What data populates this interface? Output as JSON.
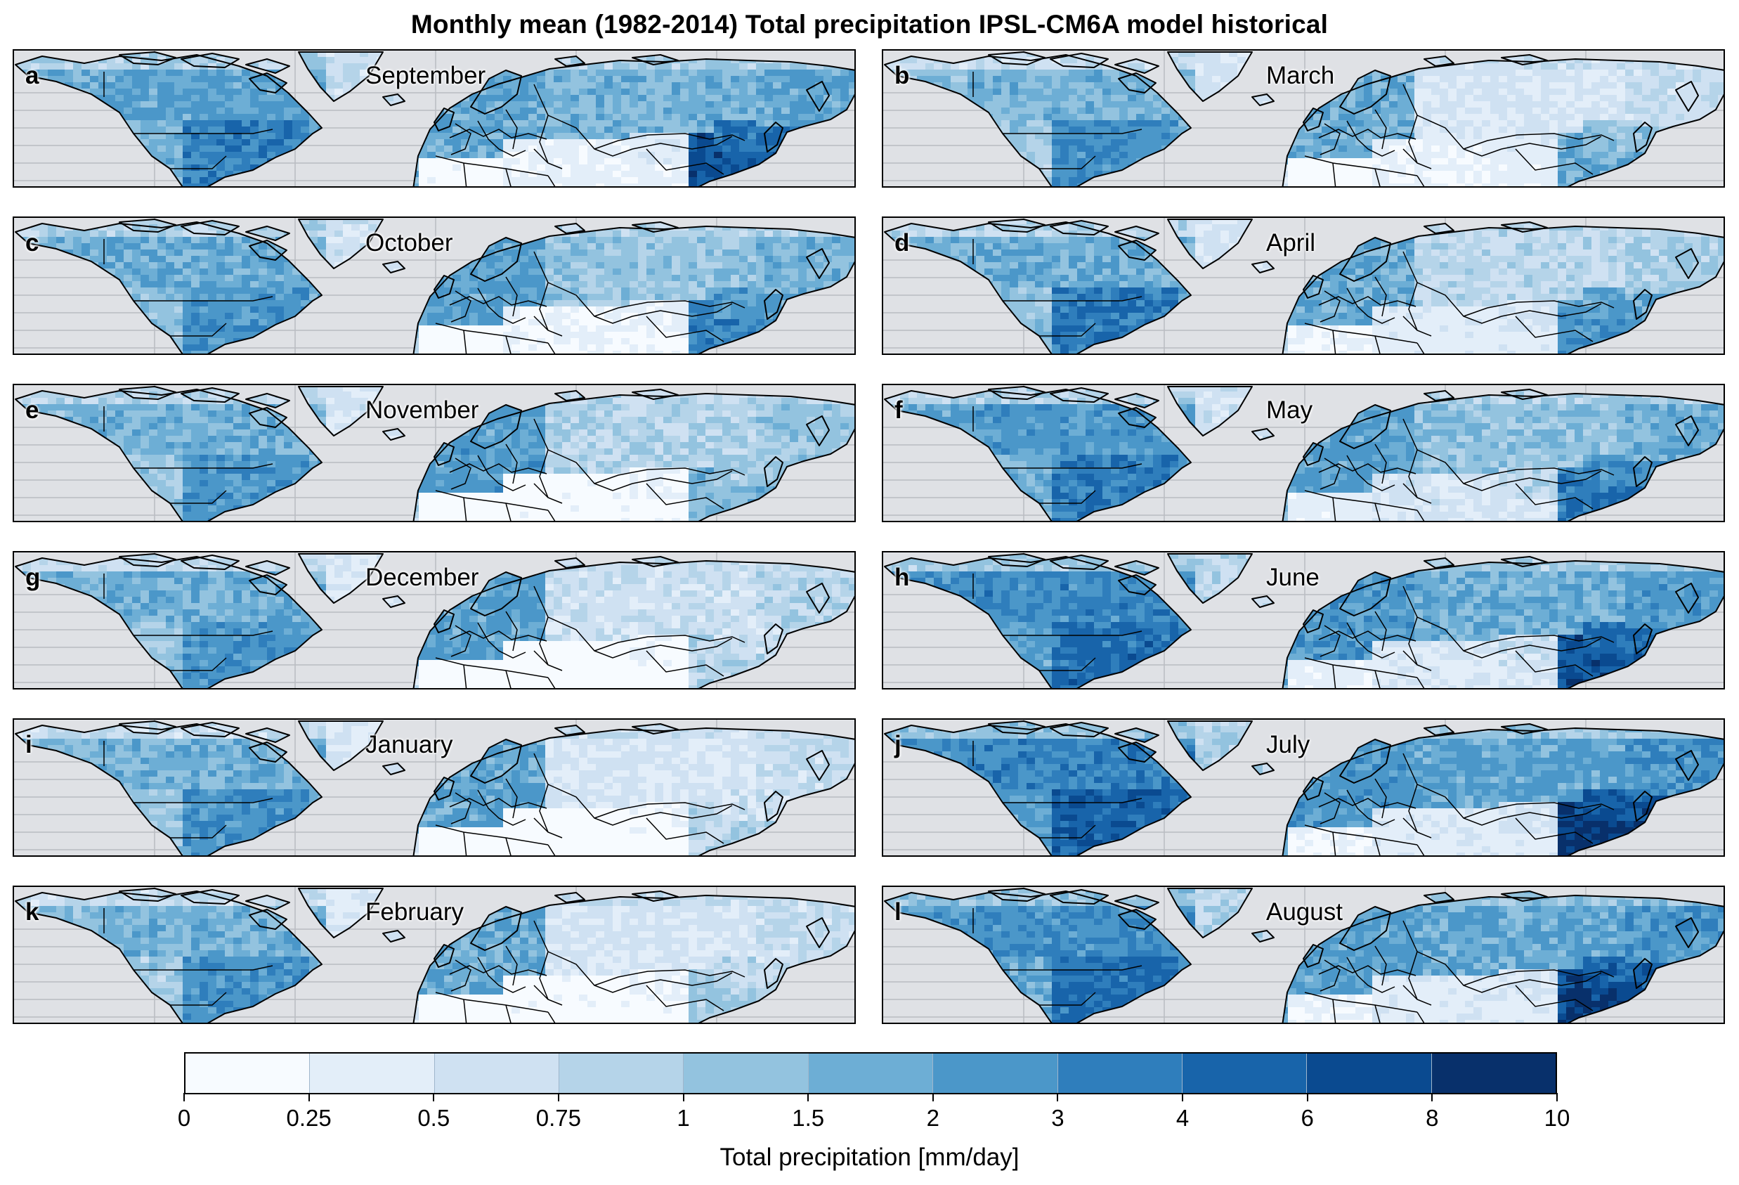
{
  "title": "Monthly mean (1982-2014) Total precipitation IPSL-CM6A model historical",
  "panels": [
    {
      "letter": "a",
      "month": "September"
    },
    {
      "letter": "b",
      "month": "March"
    },
    {
      "letter": "c",
      "month": "October"
    },
    {
      "letter": "d",
      "month": "April"
    },
    {
      "letter": "e",
      "month": "November"
    },
    {
      "letter": "f",
      "month": "May"
    },
    {
      "letter": "g",
      "month": "December"
    },
    {
      "letter": "h",
      "month": "June"
    },
    {
      "letter": "i",
      "month": "January"
    },
    {
      "letter": "j",
      "month": "July"
    },
    {
      "letter": "k",
      "month": "February"
    },
    {
      "letter": "l",
      "month": "August"
    }
  ],
  "colorbar": {
    "label": "Total precipitation [mm/day]",
    "ticks": [
      "0",
      "0.25",
      "0.5",
      "0.75",
      "1",
      "1.5",
      "2",
      "3",
      "4",
      "6",
      "8",
      "10"
    ],
    "colors": [
      "#f7fbff",
      "#e3eef9",
      "#cfe1f2",
      "#b5d4e9",
      "#93c3df",
      "#6daed5",
      "#4b97c9",
      "#2f7ebc",
      "#1864aa",
      "#0a4a90",
      "#08306b"
    ]
  },
  "colors": {
    "ocean": "#dfe1e5",
    "coast": "#000000",
    "grid": "#b9bcc2"
  }
}
